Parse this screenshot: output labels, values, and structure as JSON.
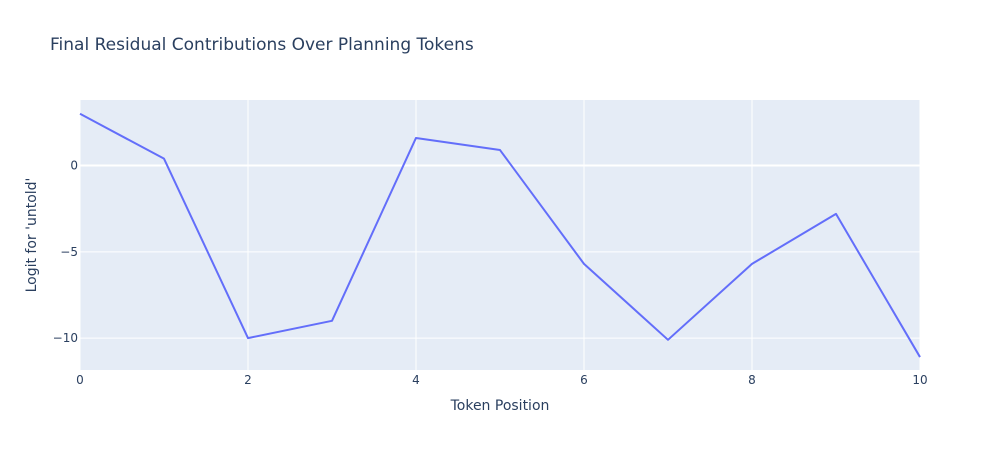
{
  "chart_data": {
    "type": "line",
    "title": "Final Residual Contributions Over Planning Tokens",
    "xlabel": "Token Position",
    "ylabel": "Logit for 'untold'",
    "xlim": [
      0,
      10
    ],
    "ylim": [
      -11.85,
      3.8
    ],
    "x_ticks": [
      0,
      2,
      4,
      6,
      8,
      10
    ],
    "y_ticks": [
      -10,
      -5,
      0
    ],
    "x_tick_labels": [
      "0",
      "2",
      "4",
      "6",
      "8",
      "10"
    ],
    "y_tick_labels": [
      "−10",
      "−5",
      "0"
    ],
    "grid": true,
    "colors": {
      "line": "#636efa",
      "plot_bg": "#e5ecf6",
      "grid": "#ffffff",
      "text": "#2a3f5f"
    },
    "series": [
      {
        "x": [
          0,
          1,
          2,
          3,
          4,
          5,
          6,
          7,
          8,
          9,
          10
        ],
        "values": [
          3.0,
          0.4,
          -10.0,
          -9.0,
          1.6,
          0.9,
          -5.7,
          -10.1,
          -5.7,
          -2.8,
          -11.1
        ]
      }
    ]
  }
}
